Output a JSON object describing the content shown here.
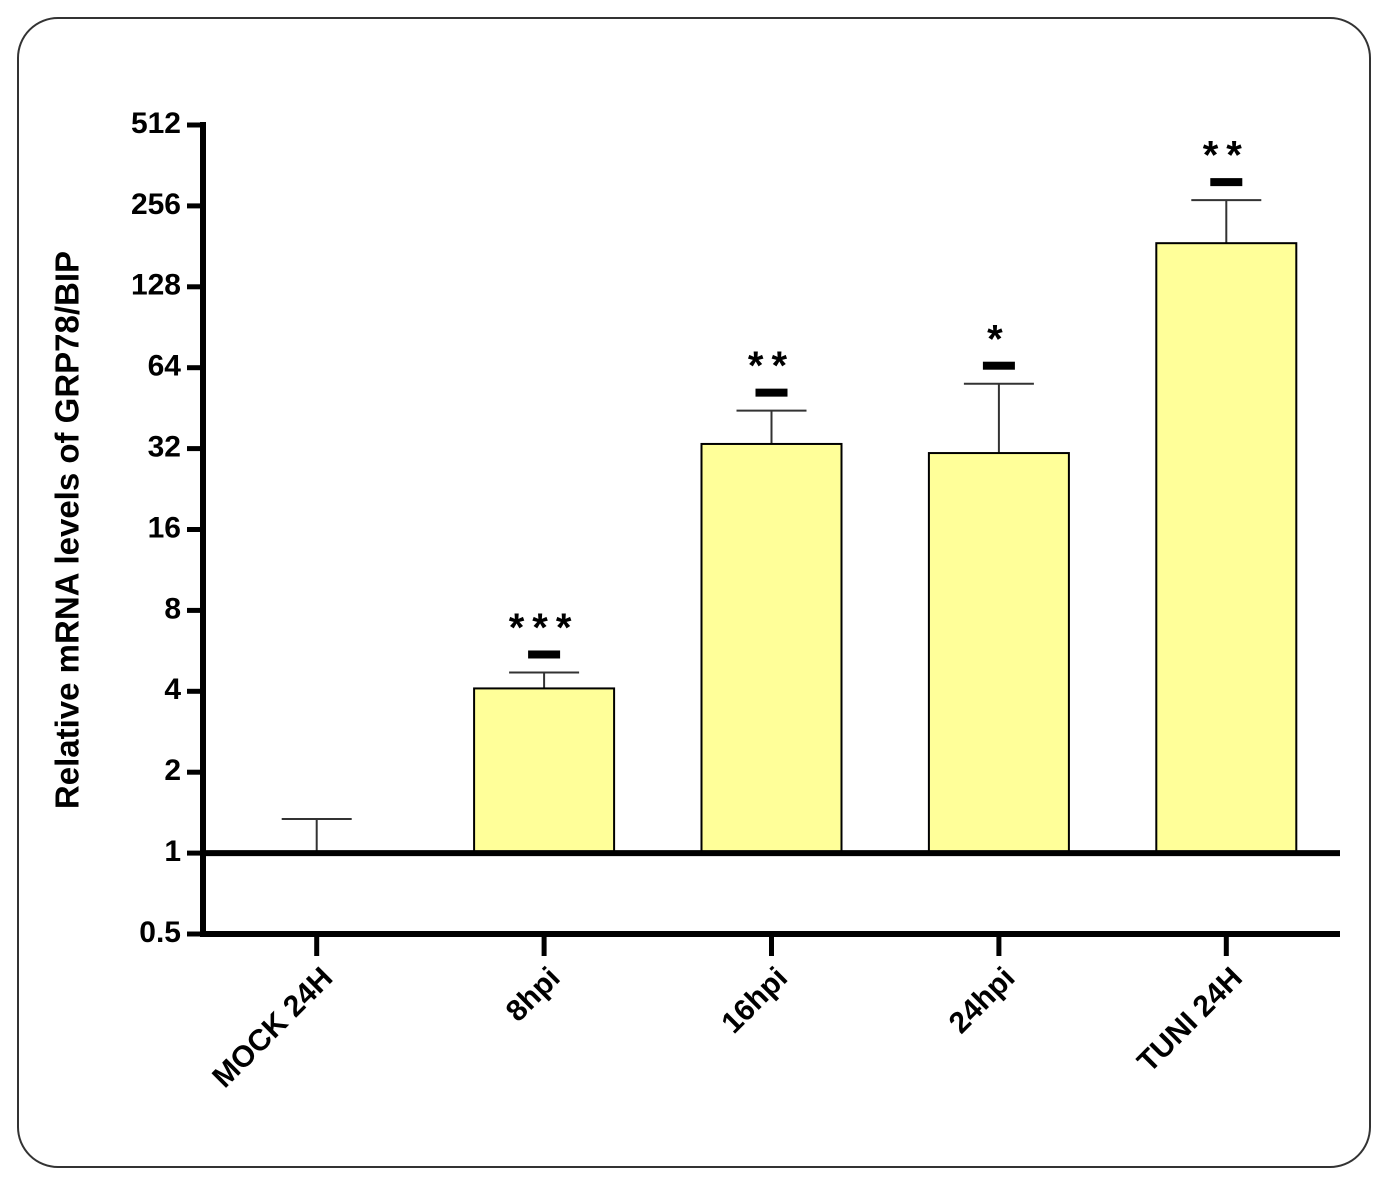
{
  "chart_data": {
    "type": "bar",
    "y_label": "Relative mRNA levels of GRP78/BIP",
    "categories": [
      "MOCK 24H",
      "8hpi",
      "16hpi",
      "24hpi",
      "TUNI 24H"
    ],
    "values": [
      1,
      4.1,
      33.3,
      30.8,
      186
    ],
    "errors": [
      0.34,
      0.6,
      11,
      25,
      83
    ],
    "significance": [
      null,
      "***",
      "**",
      "*",
      "**"
    ],
    "color": "#ffff99",
    "y_scale": "log2",
    "ylim": [
      0.5,
      512
    ],
    "yticks": [
      0.5,
      1,
      2,
      4,
      8,
      16,
      32,
      64,
      128,
      256,
      512
    ]
  }
}
